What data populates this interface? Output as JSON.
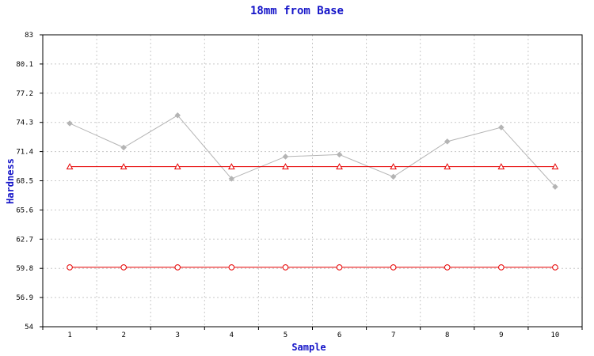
{
  "chart_data": {
    "type": "line",
    "title": "18mm from Base",
    "xlabel": "Sample",
    "ylabel": "Hardness",
    "x": [
      1,
      2,
      3,
      4,
      5,
      6,
      7,
      8,
      9,
      10
    ],
    "xlim": [
      0.5,
      10.5
    ],
    "ylim": [
      54,
      83
    ],
    "yticks": [
      "54",
      "56.9",
      "59.8",
      "62.7",
      "65.6",
      "68.5",
      "71.4",
      "74.3",
      "77.2",
      "80.1",
      "83"
    ],
    "grid": true,
    "series": [
      {
        "values": [
          74.2,
          71.8,
          75.0,
          68.7,
          70.9,
          71.1,
          68.9,
          72.4,
          73.8,
          67.9
        ],
        "color": "#b4b4b4",
        "marker": "diamond"
      },
      {
        "values": [
          69.9,
          69.9,
          69.9,
          69.9,
          69.9,
          69.9,
          69.9,
          69.9,
          69.9,
          69.9
        ],
        "color": "#e60000",
        "marker": "triangle-open"
      },
      {
        "values": [
          59.9,
          59.9,
          59.9,
          59.9,
          59.9,
          59.9,
          59.9,
          59.9,
          59.9,
          59.9
        ],
        "color": "#e60000",
        "marker": "circle-open"
      }
    ]
  }
}
